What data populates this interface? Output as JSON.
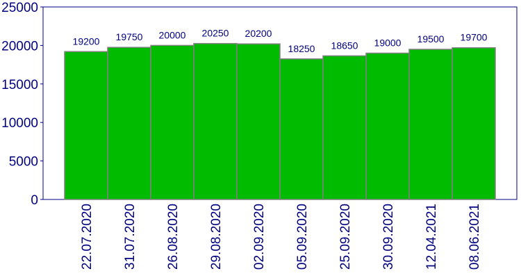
{
  "chart_data": {
    "type": "bar",
    "categories": [
      "22.07.2020",
      "31.07.2020",
      "26.08.2020",
      "29.08.2020",
      "02.09.2020",
      "05.09.2020",
      "25.09.2020",
      "30.09.2020",
      "12.04.2021",
      "08.06.2021"
    ],
    "values": [
      19200,
      19750,
      20000,
      20250,
      20200,
      18250,
      18650,
      19000,
      19500,
      19700
    ],
    "color": "#00bb00",
    "ylim": [
      0,
      25000
    ],
    "yticks": [
      0,
      5000,
      10000,
      15000,
      20000,
      25000
    ],
    "grid": false
  }
}
